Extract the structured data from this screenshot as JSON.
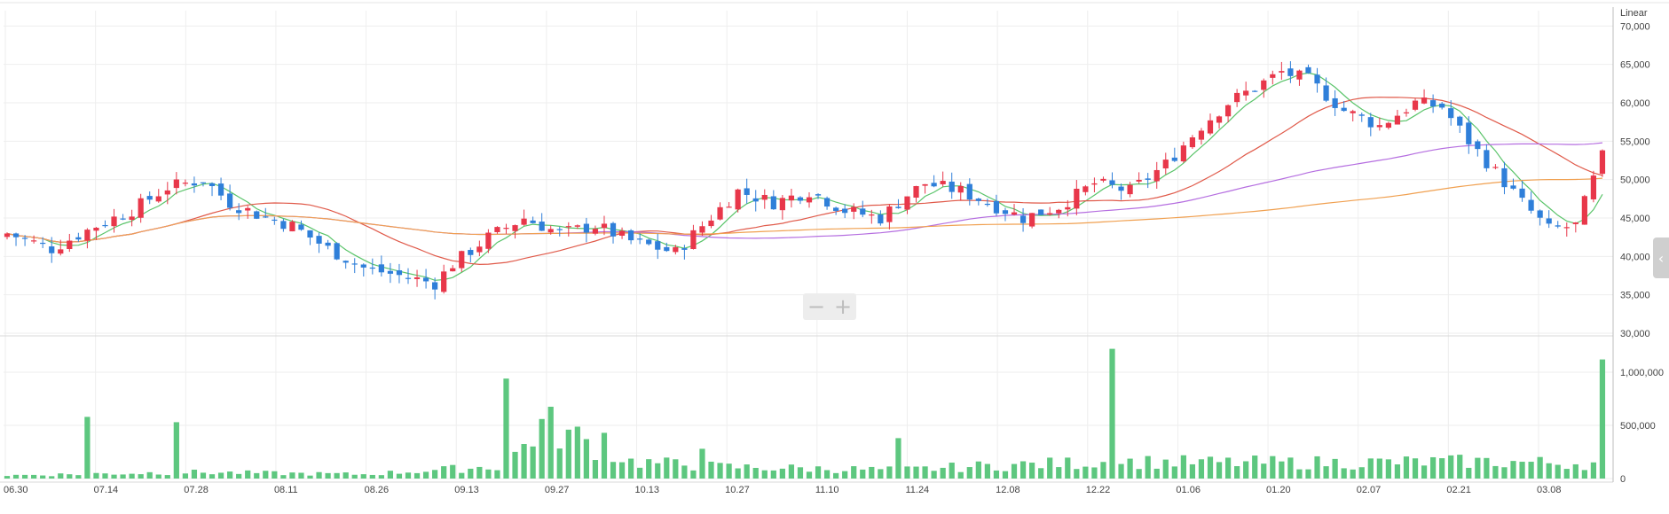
{
  "chart_data": {
    "type": "candlestick",
    "scale_label": "Linear",
    "price_axis": {
      "ylim": [
        30000,
        72000
      ],
      "ticks": [
        "70,000",
        "65,000",
        "60,000",
        "55,000",
        "50,000",
        "45,000",
        "40,000",
        "35,000",
        "30,000"
      ],
      "tick_values": [
        70000,
        65000,
        60000,
        55000,
        50000,
        45000,
        40000,
        35000,
        30000
      ]
    },
    "volume_axis": {
      "ylim": [
        0,
        1300000
      ],
      "ticks": [
        "1,000,000",
        "500,000",
        "0"
      ],
      "tick_values": [
        1000000,
        500000,
        0
      ]
    },
    "x_tick_labels": [
      "06.30",
      "07.14",
      "07.28",
      "08.11",
      "08.26",
      "09.13",
      "09.27",
      "10.13",
      "10.27",
      "11.10",
      "11.24",
      "12.08",
      "12.22",
      "01.06",
      "01.20",
      "02.07",
      "02.21",
      "03.08"
    ],
    "colors": {
      "up": "#e8374a",
      "down": "#2f7fd9",
      "volume": "#5dc77f",
      "ma5": "#5ac46a",
      "ma20": "#e05a4a",
      "ma60": "#b56ee0",
      "ma120": "#f0a050",
      "grid": "#eeeeee"
    },
    "series_count": 180,
    "price_keypoints": [
      [
        0,
        43000
      ],
      [
        5,
        41000
      ],
      [
        10,
        44000
      ],
      [
        14,
        46000
      ],
      [
        18,
        49000
      ],
      [
        22,
        50000
      ],
      [
        25,
        47000
      ],
      [
        28,
        45500
      ],
      [
        32,
        44000
      ],
      [
        36,
        41000
      ],
      [
        40,
        38500
      ],
      [
        44,
        37500
      ],
      [
        48,
        36500
      ],
      [
        50,
        39000
      ],
      [
        54,
        42500
      ],
      [
        58,
        45000
      ],
      [
        62,
        43000
      ],
      [
        66,
        44000
      ],
      [
        70,
        42000
      ],
      [
        75,
        40500
      ],
      [
        78,
        44000
      ],
      [
        82,
        48500
      ],
      [
        86,
        47000
      ],
      [
        90,
        48500
      ],
      [
        94,
        46000
      ],
      [
        98,
        45000
      ],
      [
        101,
        48000
      ],
      [
        103,
        49500
      ],
      [
        107,
        48500
      ],
      [
        110,
        47000
      ],
      [
        114,
        45000
      ],
      [
        118,
        46500
      ],
      [
        122,
        49500
      ],
      [
        126,
        48500
      ],
      [
        130,
        52000
      ],
      [
        134,
        57000
      ],
      [
        137,
        60000
      ],
      [
        140,
        62000
      ],
      [
        143,
        64000
      ],
      [
        146,
        63000
      ],
      [
        150,
        59000
      ],
      [
        154,
        57000
      ],
      [
        158,
        60000
      ],
      [
        161,
        59500
      ],
      [
        164,
        55000
      ],
      [
        167,
        51000
      ],
      [
        170,
        47000
      ],
      [
        173,
        43500
      ],
      [
        176,
        44000
      ],
      [
        179,
        53000
      ]
    ],
    "volume_keypoints": [
      [
        0,
        30000
      ],
      [
        20,
        60000
      ],
      [
        40,
        40000
      ],
      [
        56,
        120000
      ],
      [
        60,
        520000
      ],
      [
        70,
        160000
      ],
      [
        80,
        110000
      ],
      [
        100,
        80000
      ],
      [
        110,
        120000
      ],
      [
        125,
        160000
      ],
      [
        135,
        150000
      ],
      [
        150,
        150000
      ],
      [
        165,
        160000
      ],
      [
        179,
        140000
      ]
    ],
    "volume_spikes": [
      [
        9,
        580000
      ],
      [
        19,
        530000
      ],
      [
        56,
        940000
      ],
      [
        60,
        560000
      ],
      [
        67,
        430000
      ],
      [
        78,
        280000
      ],
      [
        100,
        380000
      ],
      [
        124,
        1220000
      ],
      [
        179,
        1120000
      ]
    ]
  }
}
